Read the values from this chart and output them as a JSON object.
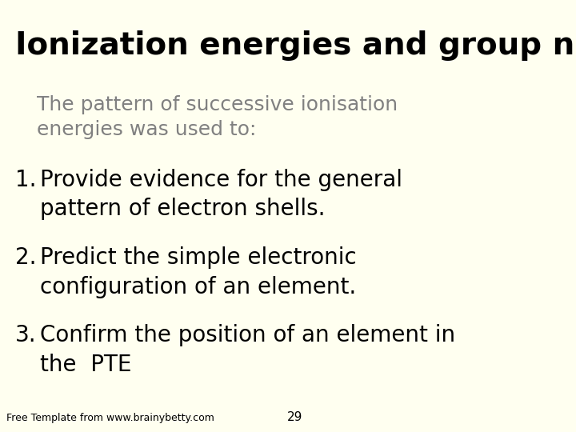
{
  "background_color": "#FFFFF0",
  "title": "Ionization energies and group numbers",
  "title_color": "#000000",
  "title_fontsize": 28,
  "title_font": "Comic Sans MS",
  "subtitle": "The pattern of successive ionisation\nenergies was used to:",
  "subtitle_color": "#808080",
  "subtitle_fontsize": 18,
  "subtitle_font": "Comic Sans MS",
  "items": [
    "Provide evidence for the general\npattern of electron shells.",
    "Predict the simple electronic\nconfiguration of an element.",
    "Confirm the position of an element in\nthe  PTE"
  ],
  "items_color": "#000000",
  "items_fontsize": 20,
  "items_font": "Comic Sans MS",
  "footer_text": "Free Template from www.brainybetty.com",
  "footer_color": "#000000",
  "footer_fontsize": 9,
  "footer_font": "Comic Sans MS",
  "page_number": "29",
  "page_number_color": "#000000",
  "page_number_fontsize": 11
}
